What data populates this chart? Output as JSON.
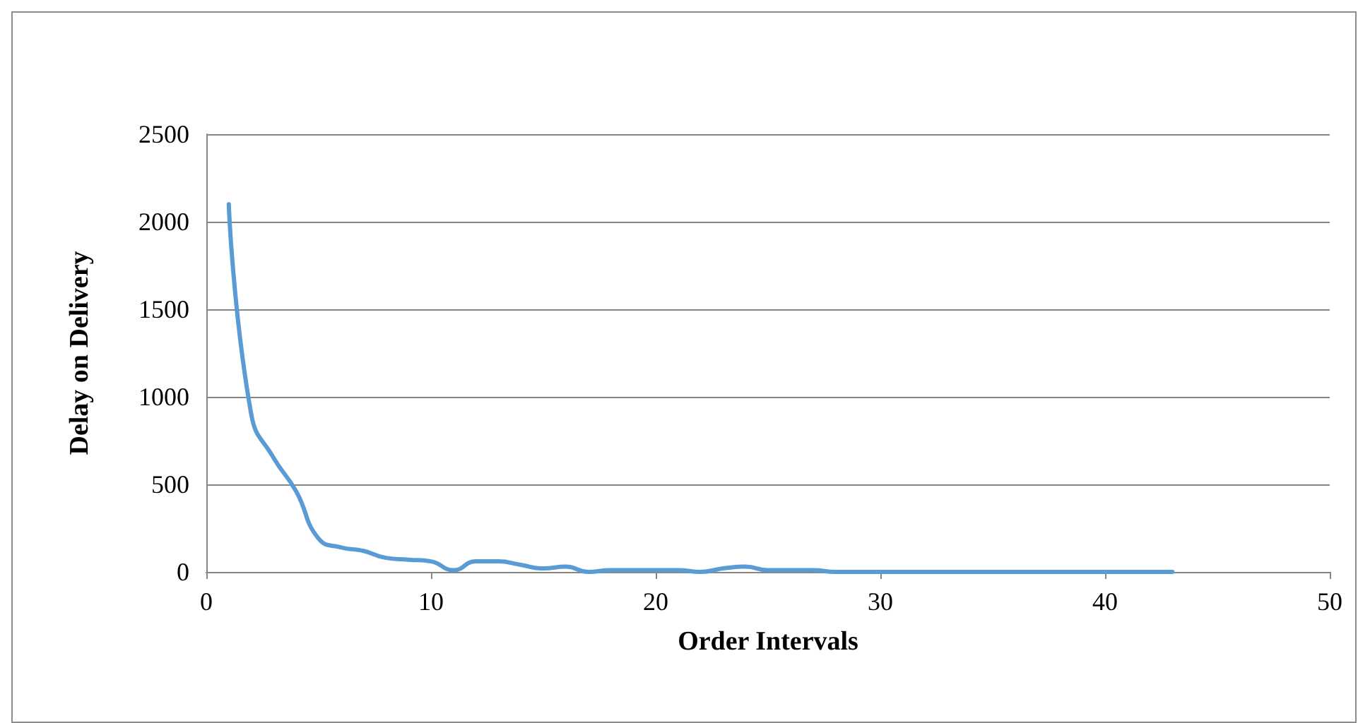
{
  "chart_data": {
    "type": "line",
    "xlabel": "Order Intervals",
    "ylabel": "Delay on Delivery",
    "x": [
      1,
      2,
      3,
      4,
      5,
      6,
      7,
      8,
      9,
      10,
      11,
      12,
      13,
      14,
      15,
      16,
      17,
      18,
      19,
      20,
      21,
      22,
      23,
      24,
      25,
      26,
      27,
      28,
      29,
      30,
      31,
      32,
      33,
      34,
      35,
      36,
      37,
      38,
      39,
      40,
      41,
      42,
      43
    ],
    "series": [
      {
        "color": "#5b9bd5",
        "values": [
          2100,
          900,
          650,
          460,
          190,
          140,
          120,
          80,
          70,
          60,
          10,
          60,
          60,
          40,
          20,
          30,
          0,
          10,
          10,
          10,
          10,
          0,
          20,
          30,
          10,
          10,
          10,
          0,
          0,
          0,
          0,
          0,
          0,
          0,
          0,
          0,
          0,
          0,
          0,
          0,
          0,
          0,
          0
        ]
      }
    ],
    "xlim": [
      0,
      50
    ],
    "xticks": [
      0,
      10,
      20,
      30,
      40,
      50
    ],
    "ylim": [
      0,
      2500
    ],
    "yticks": [
      0,
      500,
      1000,
      1500,
      2000,
      2500
    ],
    "grid": "y",
    "marker": "none",
    "line_style": "solid"
  }
}
